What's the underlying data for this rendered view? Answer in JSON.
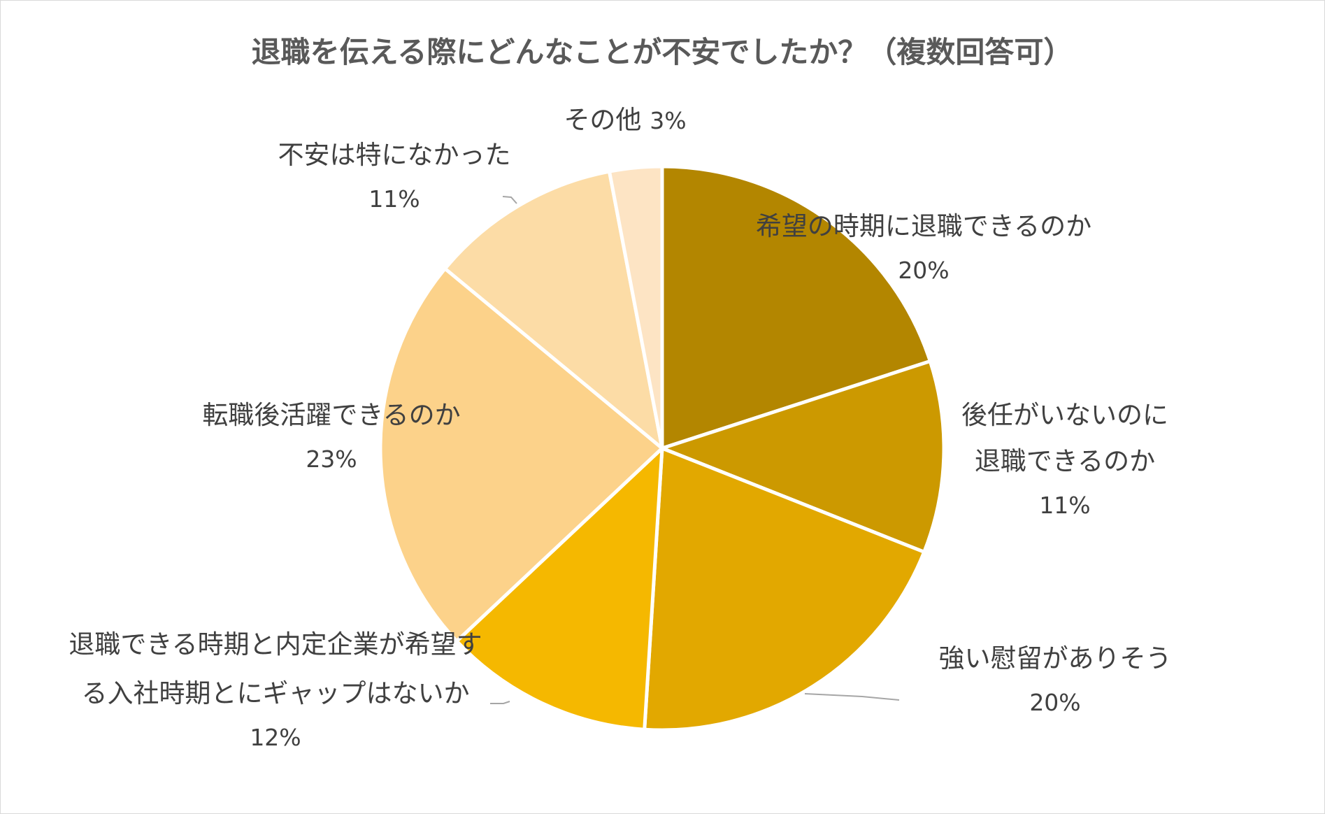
{
  "chart_data": {
    "type": "pie",
    "title": "退職を伝える際にどんなことが不安でしたか？（複数回答可）",
    "slices": [
      {
        "label_lines": [
          "希望の時期に退職できるのか"
        ],
        "value_label": "20%",
        "value": 20,
        "color": "#b38600"
      },
      {
        "label_lines": [
          "後任がいないのに",
          "退職できるのか"
        ],
        "value_label": "11%",
        "value": 11,
        "color": "#cc9900"
      },
      {
        "label_lines": [
          "強い慰留がありそう"
        ],
        "value_label": "20%",
        "value": 20,
        "color": "#e2a800"
      },
      {
        "label_lines": [
          "退職できる時期と内定企業が希望す",
          "る入社時期とにギャップはないか"
        ],
        "value_label": "12%",
        "value": 12,
        "color": "#f5b800"
      },
      {
        "label_lines": [
          "転職後活躍できるのか"
        ],
        "value_label": "23%",
        "value": 23,
        "color": "#fcd28a"
      },
      {
        "label_lines": [
          "不安は特になかった"
        ],
        "value_label": "11%",
        "value": 11,
        "color": "#fcdca6"
      },
      {
        "label_lines": [
          "その他"
        ],
        "value_label": "3%",
        "value": 3,
        "color": "#fde4c4"
      }
    ],
    "legend": "none"
  }
}
